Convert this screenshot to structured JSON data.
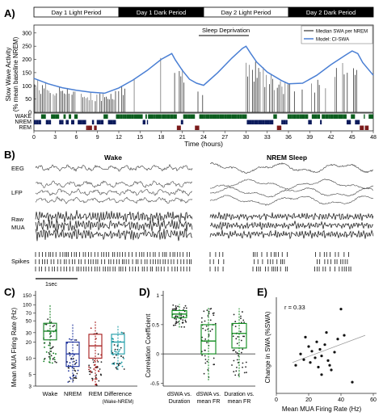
{
  "panel_a": {
    "letter": "A)",
    "periods": [
      {
        "label": "Day 1 Light Period",
        "dark": false
      },
      {
        "label": "Day 1 Dark Period",
        "dark": true
      },
      {
        "label": "Day 2 Light Period",
        "dark": false
      },
      {
        "label": "Day 2 Dark Period",
        "dark": true
      }
    ],
    "sleep_deprivation_label": "Sleep Deprivation",
    "ylabel_line1": "Slow Wave Activity",
    "ylabel_line2": "(% mean baseline NREM)",
    "xlabel": "Time (hours)",
    "yticks": [
      0,
      50,
      100,
      150,
      200,
      250,
      300
    ],
    "xticks": [
      0,
      3,
      6,
      9,
      12,
      15,
      18,
      21,
      24,
      27,
      30,
      33,
      36,
      39,
      42,
      45,
      48
    ],
    "legend": [
      {
        "label": "Median SWA per NREM",
        "color": "#333333"
      },
      {
        "label": "Model: CI-SWA",
        "color": "#4a7fd4"
      }
    ],
    "states": [
      "WAKE",
      "NREM",
      "REM"
    ],
    "colors": {
      "wake": "#0b5d1e",
      "nrem": "#0c1b5c",
      "rem": "#7a1a1a",
      "model": "#4a7fd4"
    }
  },
  "panel_b": {
    "letter": "B)",
    "wake_title": "Wake",
    "nrem_title": "NREM Sleep",
    "rows": [
      "EEG",
      "LFP",
      "Raw MUA",
      "Spikes"
    ],
    "raw_line1": "Raw",
    "raw_line2": "MUA",
    "scalebar": "1sec"
  },
  "panel_c": {
    "letter": "C)",
    "ylabel": "Mean MUA Firing Rate (Hz)",
    "yticks": [
      "3",
      "5",
      "10",
      "20",
      "30",
      "50",
      "70",
      "100",
      "150"
    ],
    "categories": [
      "Wake",
      "NREM",
      "REM",
      "Difference"
    ],
    "sub_label": "(Wake-NREM)",
    "colors": [
      "#0b7a1a",
      "#1a2f9a",
      "#a51a1a",
      "#1a9aa5"
    ]
  },
  "panel_d": {
    "letter": "D)",
    "ylabel": "Correlation Coefficient",
    "yticks": [
      "-0.5",
      "0",
      "0.5",
      "1"
    ],
    "categories": [
      {
        "l1": "dSWA vs.",
        "l2": "Duration"
      },
      {
        "l1": "dSWA vs.",
        "l2": "mean FR"
      },
      {
        "l1": "Duration vs.",
        "l2": "mean FR"
      }
    ]
  },
  "panel_e": {
    "letter": "E)",
    "ylabel": "Change in SWA (%SWA)",
    "xlabel": "Mean MUA Firing Rate (Hz)",
    "r_label": "r = 0.33",
    "xticks": [
      "0",
      "20",
      "40",
      "60"
    ]
  },
  "chart_data": [
    {
      "type": "line",
      "panel": "A",
      "title": "",
      "xlabel": "Time (hours)",
      "ylabel": "Slow Wave Activity (% mean baseline NREM)",
      "xlim": [
        0,
        48
      ],
      "ylim": [
        0,
        330
      ],
      "series": [
        {
          "name": "Model: CI-SWA",
          "x": [
            0,
            2,
            4,
            6,
            8,
            10,
            12,
            14,
            16,
            18,
            19.5,
            20,
            21,
            22,
            23,
            24,
            26,
            28,
            29.5,
            30,
            30.6,
            31.5,
            33,
            35,
            36,
            38,
            40,
            42,
            44,
            45,
            45.8,
            46.5,
            48
          ],
          "y": [
            128,
            108,
            93,
            83,
            76,
            72,
            92,
            122,
            158,
            200,
            222,
            198,
            158,
            125,
            110,
            102,
            150,
            205,
            242,
            250,
            225,
            190,
            152,
            120,
            108,
            110,
            140,
            180,
            215,
            232,
            222,
            188,
            140
          ]
        }
      ]
    },
    {
      "type": "box",
      "panel": "C",
      "ylabel": "Mean MUA Firing Rate (Hz)",
      "yscale": "log",
      "ylim": [
        3,
        170
      ],
      "categories": [
        "Wake",
        "NREM",
        "REM",
        "Difference (Wake-NREM)"
      ],
      "boxes": [
        {
          "q1": 22,
          "median": 32,
          "q3": 45,
          "lo": 8,
          "hi": 100
        },
        {
          "q1": 7,
          "median": 12,
          "q3": 20,
          "lo": 3.5,
          "hi": 45
        },
        {
          "q1": 10,
          "median": 17,
          "q3": 28,
          "lo": 3.1,
          "hi": 50
        },
        {
          "q1": 12,
          "median": 20,
          "q3": 28,
          "lo": 6,
          "hi": 40
        }
      ]
    },
    {
      "type": "box",
      "panel": "D",
      "ylabel": "Correlation Coefficient",
      "ylim": [
        -0.55,
        1.05
      ],
      "categories": [
        "dSWA vs. Duration",
        "dSWA vs. mean FR",
        "Duration vs. mean FR"
      ],
      "boxes": [
        {
          "q1": 0.62,
          "median": 0.68,
          "q3": 0.74,
          "lo": 0.45,
          "hi": 0.85
        },
        {
          "q1": 0.0,
          "median": 0.22,
          "q3": 0.5,
          "lo": -0.45,
          "hi": 0.8
        },
        {
          "q1": 0.1,
          "median": 0.35,
          "q3": 0.52,
          "lo": -0.4,
          "hi": 0.78
        }
      ]
    },
    {
      "type": "scatter",
      "panel": "E",
      "xlabel": "Mean MUA Firing Rate (Hz)",
      "ylabel": "Change in SWA (%SWA)",
      "xlim": [
        0,
        60
      ],
      "r": 0.33,
      "x": [
        12,
        15,
        17,
        18,
        20,
        21,
        22,
        24,
        25,
        26,
        27,
        28,
        28,
        30,
        31,
        32,
        33,
        34,
        36,
        38,
        40,
        42,
        47
      ],
      "y": [
        0.3,
        0.42,
        0.36,
        0.6,
        0.5,
        0.33,
        0.45,
        0.38,
        0.55,
        0.28,
        0.47,
        0.4,
        0.2,
        0.52,
        0.65,
        0.35,
        0.3,
        0.25,
        0.44,
        0.58,
        0.9,
        0.62,
        0.12
      ],
      "trend": {
        "x": [
          10,
          55
        ],
        "y": [
          0.33,
          0.62
        ]
      }
    }
  ]
}
